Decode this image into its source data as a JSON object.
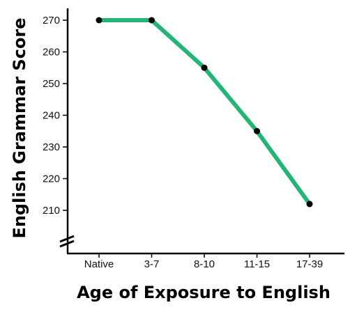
{
  "chart_data": {
    "type": "line",
    "title": "",
    "xlabel": "Age of Exposure to English",
    "ylabel": "English Grammar Score",
    "categories": [
      "Native",
      "3-7",
      "8-10",
      "11-15",
      "17-39"
    ],
    "series": [
      {
        "values": [
          270,
          270,
          255,
          235,
          212
        ]
      }
    ],
    "yticks": [
      210,
      220,
      230,
      240,
      250,
      260,
      270
    ],
    "ylim": [
      200,
      274
    ],
    "y_axis_break": true,
    "grid": false,
    "legend": "none",
    "line_color": "#22b573",
    "marker_color": "#000000"
  }
}
